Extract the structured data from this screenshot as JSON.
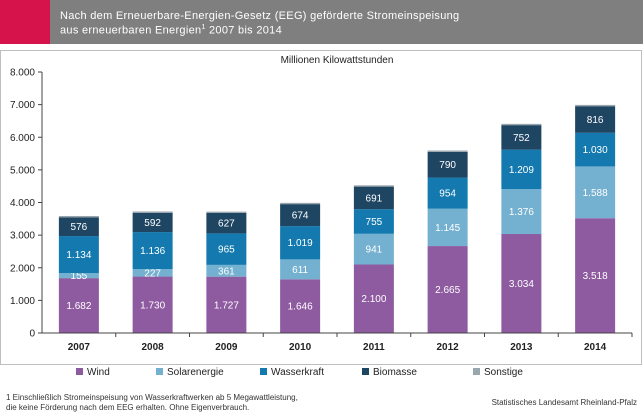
{
  "header": {
    "line1": "Nach dem Erneuerbare-Energien-Gesetz (EEG) geförderte Stromeinspeisung",
    "line2_a": "aus erneuerbaren Energien",
    "line2_sup": "1",
    "line2_b": " 2007 bis 2014"
  },
  "footnote": {
    "line1": "1 Einschließlich Stromeinspeisung von Wasserkraftwerken ab 5 Megawattleistung,",
    "line2": "die keine Förderung nach dem EEG erhalten. Ohne Eigenverbrauch."
  },
  "source": "Statistisches Landesamt Rheinland-Pfalz",
  "chart_data": {
    "type": "bar",
    "stacked": true,
    "unit_label": "Millionen Kilowattstunden",
    "categories": [
      "2007",
      "2008",
      "2009",
      "2010",
      "2011",
      "2012",
      "2013",
      "2014"
    ],
    "ylim": [
      0,
      8000
    ],
    "yticks": [
      0,
      1000,
      2000,
      3000,
      4000,
      5000,
      6000,
      7000,
      8000
    ],
    "ytick_labels": [
      "0",
      "1.000",
      "2.000",
      "3.000",
      "4.000",
      "5.000",
      "6.000",
      "7.000",
      "8.000"
    ],
    "grid": false,
    "legend_position": "bottom",
    "series": [
      {
        "name": "Wind",
        "color": "#8e5aa0",
        "values": [
          1682,
          1730,
          1727,
          1646,
          2100,
          2665,
          3034,
          3518
        ],
        "labels": [
          "1.682",
          "1.730",
          "1.727",
          "1.646",
          "2.100",
          "2.665",
          "3.034",
          "3.518"
        ]
      },
      {
        "name": "Solarenergie",
        "color": "#74b0d0",
        "values": [
          155,
          227,
          361,
          611,
          941,
          1145,
          1376,
          1588
        ],
        "labels": [
          "155",
          "227",
          "361",
          "611",
          "941",
          "1.145",
          "1.376",
          "1.588"
        ]
      },
      {
        "name": "Wasserkraft",
        "color": "#1379ae",
        "values": [
          1134,
          1136,
          965,
          1019,
          755,
          954,
          1209,
          1030
        ],
        "labels": [
          "1.134",
          "1.136",
          "965",
          "1.019",
          "755",
          "954",
          "1.209",
          "1.030"
        ]
      },
      {
        "name": "Biomasse",
        "color": "#1e4562",
        "values": [
          576,
          592,
          627,
          674,
          691,
          790,
          752,
          816
        ],
        "labels": [
          "576",
          "592",
          "627",
          "674",
          "691",
          "790",
          "752",
          "816"
        ]
      },
      {
        "name": "Sonstige",
        "color": "#9aa6ae",
        "values": [
          40,
          40,
          40,
          40,
          40,
          40,
          40,
          40
        ],
        "labels": [
          "",
          "",
          "",
          "",
          "",
          "",
          "",
          ""
        ]
      }
    ]
  }
}
